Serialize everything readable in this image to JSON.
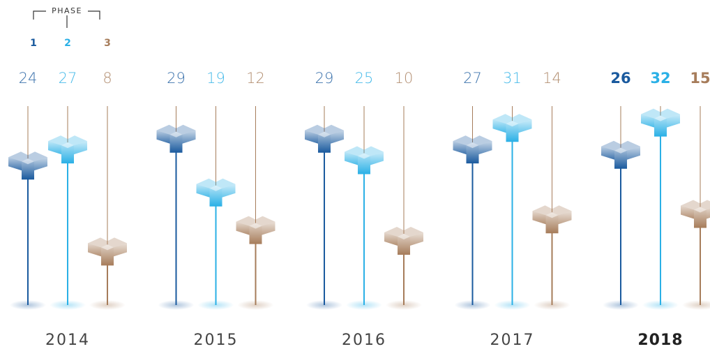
{
  "chart_data": {
    "type": "lollipop",
    "legend_title": "PHASE",
    "categories": [
      "2014",
      "2015",
      "2016",
      "2017",
      "2018"
    ],
    "highlight": "2018",
    "series": [
      {
        "name": "1",
        "color": "#1a5a9e",
        "values": [
          24,
          29,
          29,
          27,
          26
        ]
      },
      {
        "name": "2",
        "color": "#2ab0e6",
        "values": [
          27,
          19,
          25,
          31,
          32
        ]
      },
      {
        "name": "3",
        "color": "#a67c5a",
        "values": [
          8,
          12,
          10,
          14,
          15
        ]
      }
    ]
  }
}
